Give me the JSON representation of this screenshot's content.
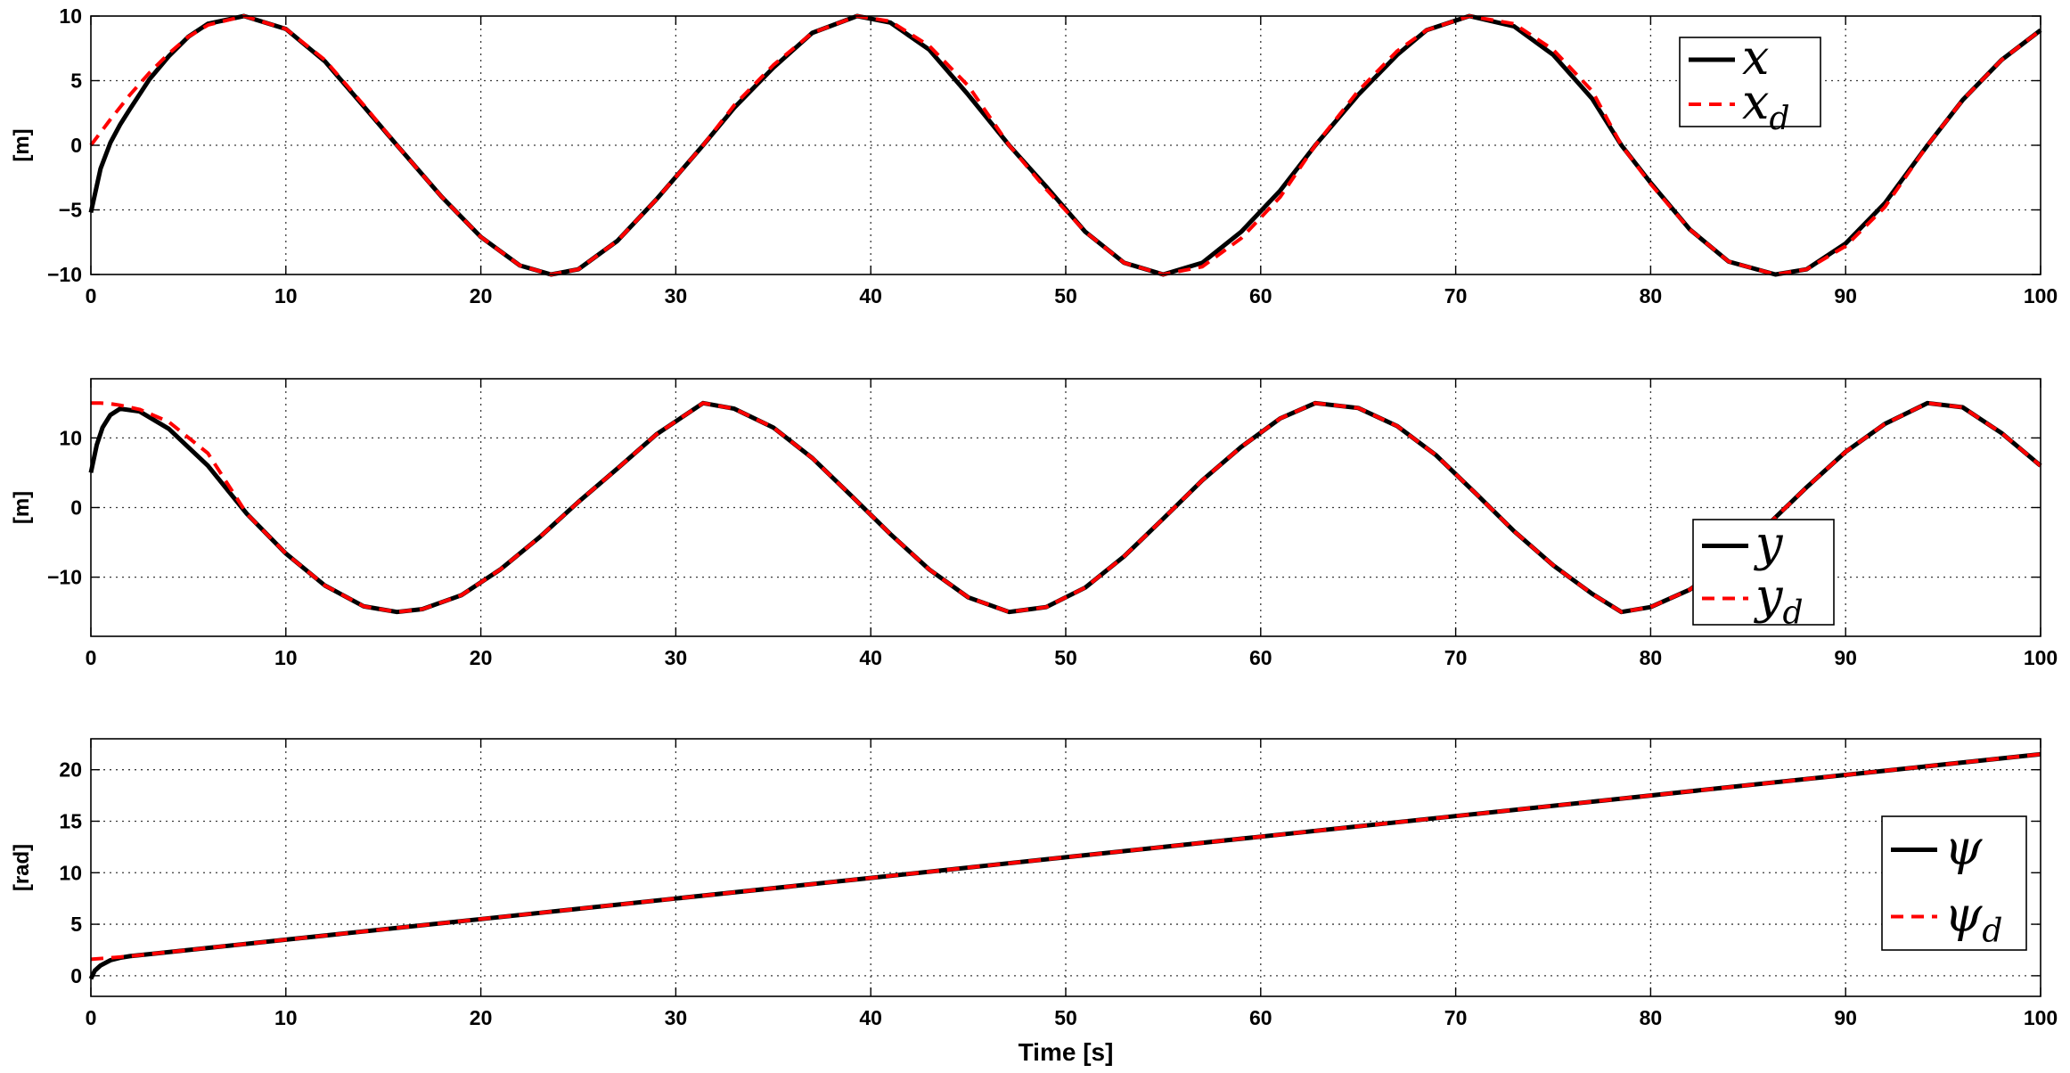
{
  "chart_data": [
    {
      "type": "line",
      "ylabel": "[m]",
      "xlabel": "",
      "xlim": [
        0,
        100
      ],
      "ylim": [
        -10,
        10
      ],
      "xticks": [
        0,
        10,
        20,
        30,
        40,
        50,
        60,
        70,
        80,
        90,
        100
      ],
      "yticks": [
        -10,
        -5,
        0,
        5,
        10
      ],
      "grid": true,
      "legend_position": "top-right",
      "series": [
        {
          "name": "x",
          "name_sub": "",
          "color": "#000000",
          "style": "solid",
          "x": [
            0,
            0.5,
            1,
            1.5,
            2,
            3,
            4,
            5,
            6,
            7.85,
            10,
            12,
            14,
            15.7,
            18,
            20,
            22,
            23.6,
            25,
            27,
            29,
            31.4,
            33,
            35,
            37,
            39.3,
            41,
            43,
            45,
            47.1,
            49,
            51,
            53,
            55,
            57,
            59,
            61,
            62.8,
            65,
            67,
            68.5,
            70.7,
            73,
            75,
            77,
            78.5,
            80,
            82,
            84,
            86.4,
            88,
            90,
            92,
            94.2,
            96,
            98,
            100
          ],
          "y": [
            -5.2,
            -1.8,
            0.2,
            1.6,
            2.8,
            5.1,
            6.9,
            8.4,
            9.4,
            10.0,
            9.0,
            6.5,
            3.0,
            0.0,
            -4.0,
            -7.1,
            -9.3,
            -10.0,
            -9.6,
            -7.4,
            -4.2,
            0.0,
            2.9,
            6.0,
            8.7,
            10.0,
            9.5,
            7.4,
            3.9,
            0.0,
            -3.2,
            -6.7,
            -9.1,
            -10.0,
            -9.1,
            -6.7,
            -3.5,
            0.0,
            3.9,
            7.0,
            8.9,
            10.0,
            9.2,
            7.0,
            3.6,
            0.0,
            -2.9,
            -6.5,
            -9.0,
            -10.0,
            -9.6,
            -7.6,
            -4.5,
            0.0,
            3.5,
            6.6,
            8.9
          ]
        },
        {
          "name": "x",
          "name_sub": "d",
          "color": "#ff0000",
          "style": "dashed",
          "x": [
            0,
            1,
            2,
            3,
            4,
            5,
            6,
            7.85,
            10,
            12,
            14,
            15.7,
            18,
            20,
            22,
            23.6,
            25,
            27,
            29,
            31.4,
            33,
            35,
            37,
            39.3,
            41,
            43,
            45,
            47.1,
            49,
            51,
            53,
            55,
            57,
            59,
            61,
            62.8,
            65,
            67,
            68.5,
            70.7,
            73,
            75,
            77,
            78.5,
            80,
            82,
            84,
            86.4,
            88,
            90,
            92,
            94.2,
            96,
            98,
            100
          ],
          "y": [
            0.0,
            2.0,
            3.9,
            5.6,
            7.1,
            8.4,
            9.3,
            10.0,
            9.0,
            6.6,
            3.1,
            0.0,
            -4.0,
            -7.1,
            -9.3,
            -10.0,
            -9.6,
            -7.4,
            -4.2,
            0.0,
            3.1,
            6.2,
            8.7,
            10.0,
            9.6,
            7.7,
            4.6,
            0.0,
            -3.4,
            -6.7,
            -9.1,
            -10.0,
            -9.4,
            -7.2,
            -4.0,
            0.0,
            4.2,
            7.3,
            8.9,
            10.0,
            9.4,
            7.4,
            4.2,
            0.0,
            -3.0,
            -6.5,
            -9.0,
            -10.0,
            -9.6,
            -7.8,
            -4.8,
            0.0,
            3.5,
            6.6,
            8.9
          ]
        }
      ]
    },
    {
      "type": "line",
      "ylabel": "[m]",
      "xlabel": "",
      "xlim": [
        0,
        100
      ],
      "ylim": [
        -18.5,
        18.5
      ],
      "xticks": [
        0,
        10,
        20,
        30,
        40,
        50,
        60,
        70,
        80,
        90,
        100
      ],
      "yticks": [
        -10,
        0,
        10
      ],
      "grid": true,
      "legend_position": "bottom-right",
      "series": [
        {
          "name": "y",
          "name_sub": "",
          "color": "#000000",
          "style": "solid",
          "x": [
            0,
            0.3,
            0.6,
            1,
            1.5,
            2.5,
            4,
            6,
            8,
            10,
            12,
            14,
            15.7,
            17,
            19,
            21,
            23,
            25,
            27,
            29,
            31.4,
            33,
            35,
            37,
            39,
            41,
            43,
            45,
            47.1,
            49,
            51,
            53,
            55,
            57,
            59,
            61,
            62.8,
            65,
            67,
            69,
            71,
            73,
            75,
            77,
            78.5,
            80,
            82,
            84,
            86,
            88,
            90,
            92,
            94.2,
            96,
            98,
            100
          ],
          "y": [
            5.0,
            9.0,
            11.5,
            13.3,
            14.2,
            13.8,
            11.3,
            6.0,
            -0.9,
            -6.6,
            -11.2,
            -14.2,
            -15.0,
            -14.6,
            -12.6,
            -8.9,
            -4.3,
            0.8,
            5.6,
            10.5,
            15.0,
            14.2,
            11.5,
            7.1,
            1.7,
            -3.8,
            -8.9,
            -12.9,
            -15.0,
            -14.3,
            -11.5,
            -7.0,
            -1.6,
            3.9,
            8.7,
            12.8,
            15.0,
            14.3,
            11.7,
            7.5,
            2.1,
            -3.4,
            -8.3,
            -12.4,
            -15.0,
            -14.3,
            -11.8,
            -7.9,
            -2.5,
            2.9,
            8.0,
            12.0,
            15.0,
            14.4,
            10.7,
            6.0
          ]
        },
        {
          "name": "y",
          "name_sub": "d",
          "color": "#ff0000",
          "style": "dashed",
          "x": [
            0,
            0.5,
            1,
            1.5,
            2.5,
            4,
            6,
            8,
            10,
            12,
            14,
            15.7,
            17,
            19,
            21,
            23,
            25,
            27,
            29,
            31.4,
            33,
            35,
            37,
            39,
            41,
            43,
            45,
            47.1,
            49,
            51,
            53,
            55,
            57,
            59,
            61,
            62.8,
            65,
            67,
            69,
            71,
            73,
            75,
            77,
            78.5,
            80,
            82,
            84,
            86,
            88,
            90,
            92,
            94.2,
            96,
            98,
            100
          ],
          "y": [
            15.0,
            15.0,
            14.9,
            14.7,
            14.1,
            12.3,
            7.8,
            -0.9,
            -6.6,
            -11.2,
            -14.2,
            -15.0,
            -14.6,
            -12.6,
            -8.9,
            -4.3,
            0.8,
            5.6,
            10.5,
            15.0,
            14.2,
            11.5,
            7.1,
            1.7,
            -3.8,
            -8.9,
            -12.9,
            -15.0,
            -14.3,
            -11.5,
            -7.0,
            -1.6,
            3.9,
            8.7,
            12.8,
            15.0,
            14.3,
            11.7,
            7.5,
            2.1,
            -3.4,
            -8.3,
            -12.4,
            -15.0,
            -14.3,
            -11.8,
            -7.9,
            -2.5,
            2.9,
            8.0,
            12.0,
            15.0,
            14.4,
            10.7,
            6.0
          ]
        }
      ]
    },
    {
      "type": "line",
      "ylabel": "[rad]",
      "xlabel": "Time [s]",
      "xlim": [
        0,
        100
      ],
      "ylim": [
        -2,
        23
      ],
      "xticks": [
        0,
        10,
        20,
        30,
        40,
        50,
        60,
        70,
        80,
        90,
        100
      ],
      "yticks": [
        0,
        5,
        10,
        15,
        20
      ],
      "grid": true,
      "legend_position": "bottom-right",
      "series": [
        {
          "name": "ψ",
          "name_sub": "",
          "color": "#000000",
          "style": "solid",
          "x": [
            0,
            0.2,
            0.5,
            1,
            1.5,
            2,
            3,
            10,
            20,
            30,
            40,
            50,
            60,
            70,
            80,
            90,
            100
          ],
          "y": [
            -0.3,
            0.5,
            1.0,
            1.5,
            1.75,
            1.9,
            2.1,
            3.5,
            5.5,
            7.5,
            9.5,
            11.5,
            13.5,
            15.5,
            17.5,
            19.5,
            21.5
          ]
        },
        {
          "name": "ψ",
          "name_sub": "d",
          "color": "#ff0000",
          "style": "dashed",
          "x": [
            0,
            1,
            2,
            3,
            10,
            20,
            30,
            40,
            50,
            60,
            70,
            80,
            90,
            100
          ],
          "y": [
            1.6,
            1.75,
            1.9,
            2.1,
            3.5,
            5.5,
            7.5,
            9.5,
            11.5,
            13.5,
            15.5,
            17.5,
            19.5,
            21.5
          ]
        }
      ]
    }
  ]
}
